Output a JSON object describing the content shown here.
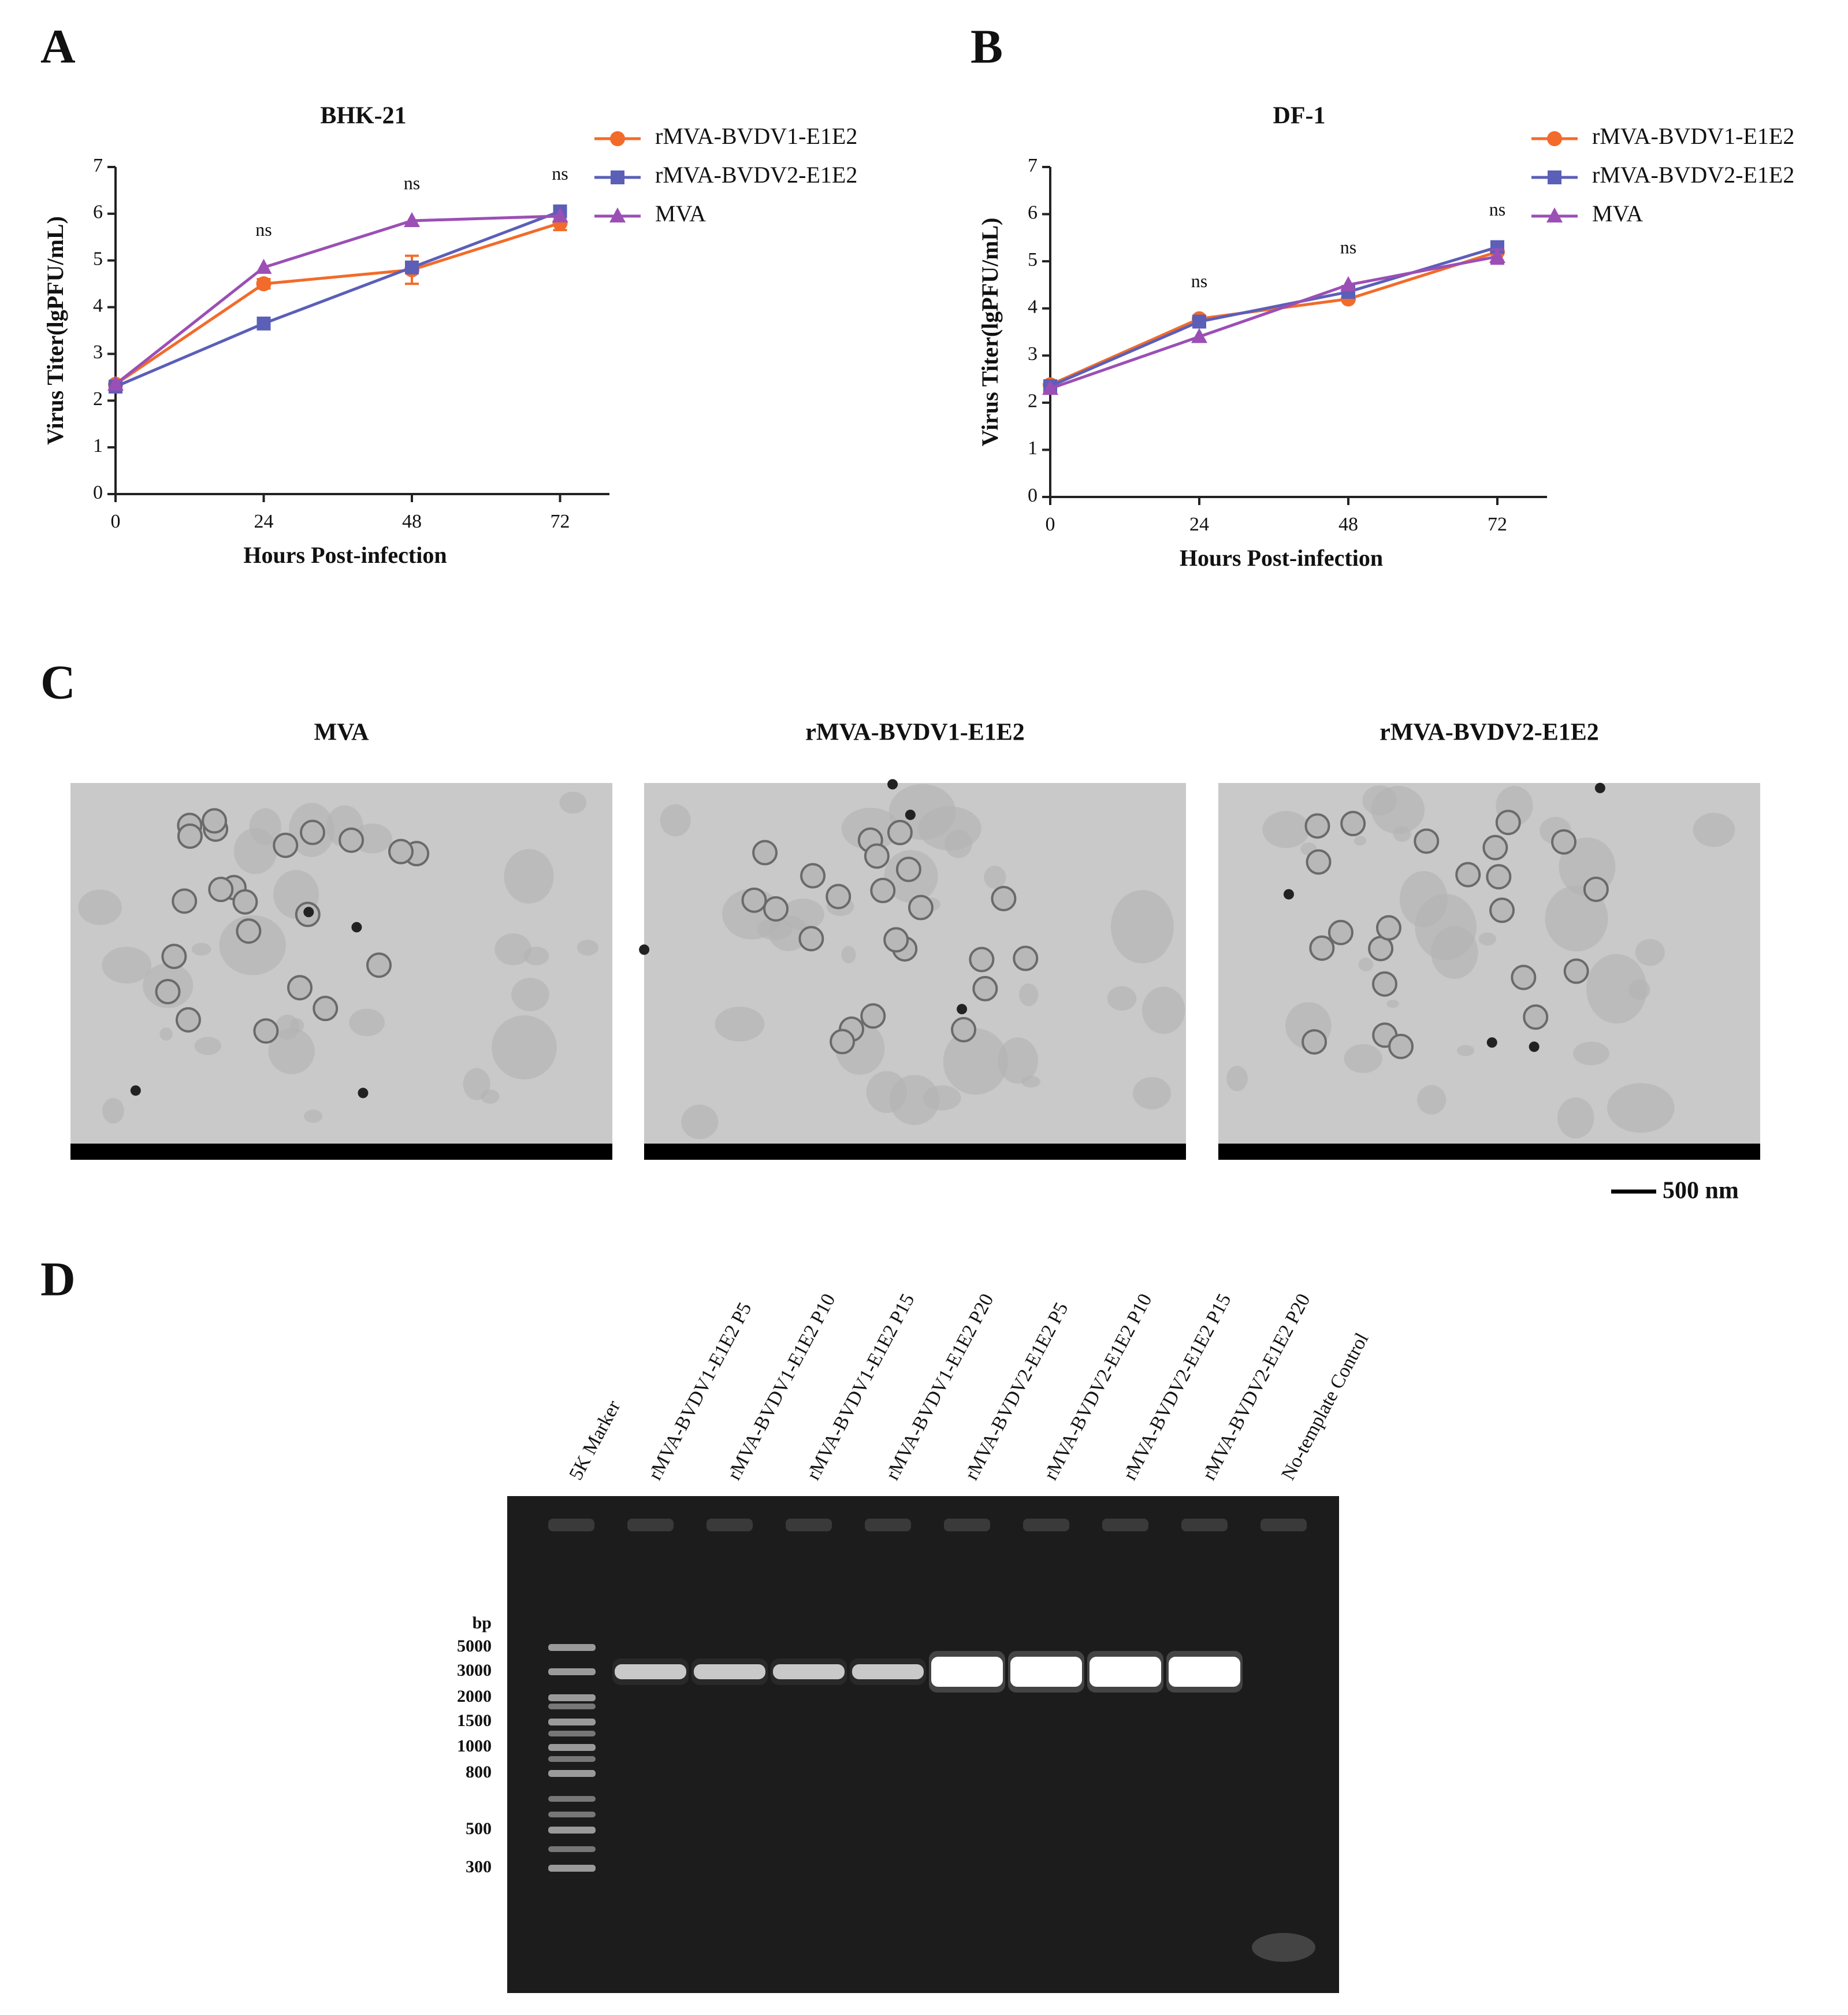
{
  "chart_data": [
    {
      "type": "line",
      "panel_label": "A",
      "title": "BHK-21",
      "x_label": "Hours Post-infection",
      "y_label": "Virus Titer(lgPFU/mL)",
      "x": [
        0,
        24,
        48,
        72
      ],
      "xlim": [
        0,
        80
      ],
      "xticks": [
        0,
        24,
        48,
        72
      ],
      "ylim": [
        0,
        7
      ],
      "yticks": [
        0,
        1,
        2,
        3,
        4,
        5,
        6,
        7
      ],
      "legend": "right",
      "series": [
        {
          "name": "rMVA-BVDV1-E1E2",
          "color": "#f26b2a",
          "marker": "circle",
          "values": [
            2.35,
            4.5,
            4.8,
            5.8
          ],
          "errors": [
            null,
            0.1,
            0.3,
            0.15
          ]
        },
        {
          "name": "rMVA-BVDV2-E1E2",
          "color": "#5b5fb8",
          "marker": "square",
          "values": [
            2.3,
            3.65,
            4.85,
            6.05
          ],
          "errors": [
            null,
            null,
            null,
            null
          ]
        },
        {
          "name": "MVA",
          "color": "#9b4fb5",
          "marker": "triangle",
          "values": [
            2.35,
            4.85,
            5.85,
            5.95
          ],
          "errors": [
            null,
            null,
            null,
            null
          ]
        }
      ],
      "annotations": [
        {
          "x": 24,
          "text": "ns"
        },
        {
          "x": 48,
          "text": "ns"
        },
        {
          "x": 72,
          "text": "ns"
        }
      ]
    },
    {
      "type": "line",
      "panel_label": "B",
      "title": "DF-1",
      "x_label": "Hours Post-infection",
      "y_label": "Virus Titer(lgPFU/mL)",
      "x": [
        0,
        24,
        48,
        72
      ],
      "xlim": [
        0,
        80
      ],
      "xticks": [
        0,
        24,
        48,
        72
      ],
      "ylim": [
        0,
        7
      ],
      "yticks": [
        0,
        1,
        2,
        3,
        4,
        5,
        6,
        7
      ],
      "legend": "right",
      "series": [
        {
          "name": "rMVA-BVDV1-E1E2",
          "color": "#f26b2a",
          "marker": "circle",
          "values": [
            2.38,
            3.78,
            4.2,
            5.2
          ],
          "errors": [
            null,
            null,
            null,
            null
          ]
        },
        {
          "name": "rMVA-BVDV2-E1E2",
          "color": "#5b5fb8",
          "marker": "square",
          "values": [
            2.35,
            3.72,
            4.35,
            5.3
          ],
          "errors": [
            null,
            null,
            null,
            null
          ]
        },
        {
          "name": "MVA",
          "color": "#9b4fb5",
          "marker": "triangle",
          "values": [
            2.3,
            3.4,
            4.5,
            5.1
          ],
          "errors": [
            null,
            null,
            null,
            0.15
          ]
        }
      ],
      "annotations": [
        {
          "x": 24,
          "text": "ns"
        },
        {
          "x": 48,
          "text": "ns"
        },
        {
          "x": 72,
          "text": "ns"
        }
      ]
    }
  ],
  "panel_c": {
    "label": "C",
    "images": [
      {
        "title": "MVA"
      },
      {
        "title": "rMVA-BVDV1-E1E2"
      },
      {
        "title": "rMVA-BVDV2-E1E2"
      }
    ],
    "scale_bar": "500 nm"
  },
  "panel_d": {
    "label": "D",
    "lanes": [
      "5K Marker",
      "rMVA-BVDV1-E1E2 P5",
      "rMVA-BVDV1-E1E2 P10",
      "rMVA-BVDV1-E1E2 P15",
      "rMVA-BVDV1-E1E2 P20",
      "rMVA-BVDV2-E1E2 P5",
      "rMVA-BVDV2-E1E2 P10",
      "rMVA-BVDV2-E1E2 P15",
      "rMVA-BVDV2-E1E2 P20",
      "No-template Control"
    ],
    "unit_label": "bp",
    "marker_labels": [
      "5000",
      "3000",
      "2000",
      "1500",
      "1000",
      "800",
      "500",
      "300"
    ]
  }
}
